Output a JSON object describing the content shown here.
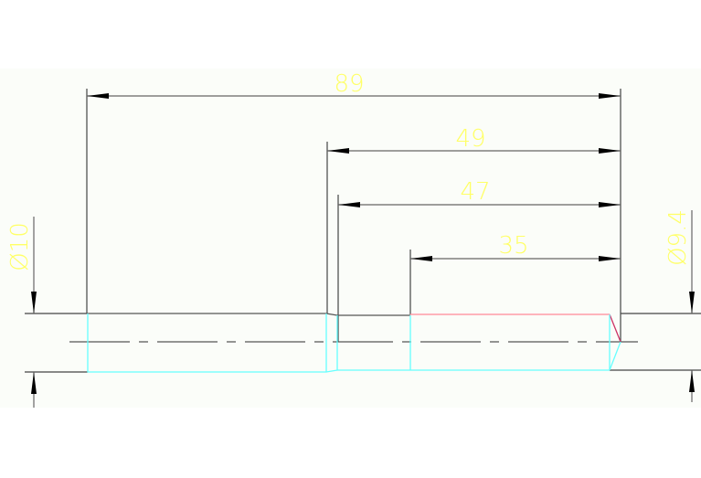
{
  "drawing": {
    "dimensions": {
      "overall_length": "89",
      "length_49": "49",
      "length_47": "47",
      "length_35": "35",
      "diameter_left": "Ø10",
      "diameter_right": "Ø9.4"
    },
    "colors": {
      "background": "#fbfdf9",
      "outline": "#555555",
      "dimension_text": "#ffff66",
      "hidden_edges": "#66ffff",
      "thread_edge": "#ff8899",
      "chamfer": "#cc3366"
    }
  }
}
